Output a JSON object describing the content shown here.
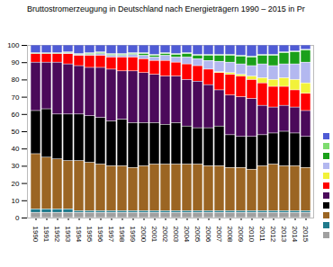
{
  "chart_data": {
    "type": "bar",
    "title": "Bruttostromerzeugung in Deutschland nach Energieträgern 1990 – 2015 in Pr",
    "stacked": true,
    "legend": "right",
    "grid": false,
    "categories": [
      "1990",
      "1991",
      "1992",
      "1993",
      "1994",
      "1995",
      "1996",
      "1997",
      "1998",
      "1999",
      "2000",
      "2001",
      "2002",
      "2003",
      "2004",
      "2005",
      "2006",
      "2007",
      "2008",
      "2009",
      "2010",
      "2011",
      "2012",
      "2013",
      "2014",
      "2015"
    ],
    "ylim": [
      0,
      100
    ],
    "yticks": [
      0,
      10,
      20,
      30,
      40,
      50,
      60,
      70,
      80,
      90,
      100
    ],
    "series": [
      {
        "color": "#a0a0a0",
        "values": [
          3,
          3,
          3,
          3,
          3,
          3,
          3,
          3,
          3,
          3,
          3,
          3,
          3,
          3,
          3,
          3,
          3,
          3,
          3,
          3,
          3,
          3,
          3,
          3,
          3,
          3
        ]
      },
      {
        "color": "#1f7a8c",
        "values": [
          2,
          2,
          2,
          2,
          1,
          1,
          1,
          1,
          1,
          1,
          1,
          1,
          1,
          1,
          1,
          1,
          1,
          1,
          1,
          1,
          1,
          1,
          1,
          1,
          1,
          1
        ]
      },
      {
        "color": "#9b6523",
        "values": [
          32,
          30,
          29,
          28,
          29,
          28,
          27,
          26,
          26,
          25,
          26,
          27,
          27,
          27,
          27,
          27,
          26,
          26,
          25,
          25,
          24,
          26,
          27,
          26,
          26,
          25
        ]
      },
      {
        "color": "#000000",
        "values": [
          25,
          28,
          26,
          27,
          27,
          27,
          27,
          26,
          27,
          26,
          25,
          24,
          23,
          24,
          22,
          21,
          22,
          23,
          19,
          18,
          19,
          18,
          18,
          20,
          19,
          18
        ]
      },
      {
        "color": "#4b0a5a",
        "values": [
          28,
          27,
          30,
          29,
          28,
          28,
          29,
          30,
          28,
          30,
          29,
          28,
          28,
          27,
          27,
          27,
          25,
          21,
          23,
          23,
          22,
          17,
          15,
          15,
          15,
          15
        ]
      },
      {
        "color": "#ff0000",
        "values": [
          5,
          5,
          5,
          6,
          6,
          7,
          7,
          7,
          8,
          8,
          8,
          8,
          9,
          8,
          9,
          9,
          9,
          10,
          12,
          12,
          11,
          13,
          12,
          11,
          10,
          10
        ]
      },
      {
        "color": "#f2f23a",
        "values": [
          0,
          0,
          0,
          0,
          0,
          0,
          0,
          0,
          0,
          0,
          0,
          0,
          0,
          0,
          0,
          0,
          0,
          0.5,
          1,
          1,
          2,
          3,
          4,
          5,
          6,
          6
        ]
      },
      {
        "color": "#b3b8f0",
        "values": [
          0,
          0,
          0,
          0.5,
          0.5,
          0.5,
          1,
          1,
          1,
          1.5,
          2,
          2,
          3,
          3,
          4,
          4,
          5,
          6,
          6,
          6,
          6,
          8,
          8,
          8,
          9,
          12
        ]
      },
      {
        "color": "#1aa01a",
        "values": [
          0,
          0,
          0,
          0,
          0,
          0.5,
          0.5,
          0.5,
          0.5,
          0.5,
          1,
          1,
          1,
          1.5,
          2,
          2,
          3,
          3.5,
          4,
          4.5,
          5,
          5,
          6,
          6.5,
          7,
          7
        ]
      },
      {
        "color": "#7ddc6f",
        "values": [
          0.5,
          0.5,
          0.5,
          0.5,
          0.5,
          0.5,
          0.5,
          0.5,
          0.5,
          0.5,
          0.5,
          0.5,
          0.5,
          0.5,
          0.5,
          0.5,
          0.5,
          0.5,
          0.5,
          0.5,
          0.5,
          0.5,
          0.5,
          0.5,
          0.5,
          0.5
        ]
      },
      {
        "color": "#4f5bd5",
        "values": [
          4.5,
          4.5,
          4.5,
          4,
          5,
          4.5,
          4,
          5,
          5,
          4.5,
          4.5,
          5.5,
          4.5,
          5,
          4.5,
          5.5,
          5.5,
          5.5,
          5.5,
          6,
          6.5,
          5.5,
          5.5,
          4,
          3.5,
          2.5
        ]
      }
    ]
  }
}
